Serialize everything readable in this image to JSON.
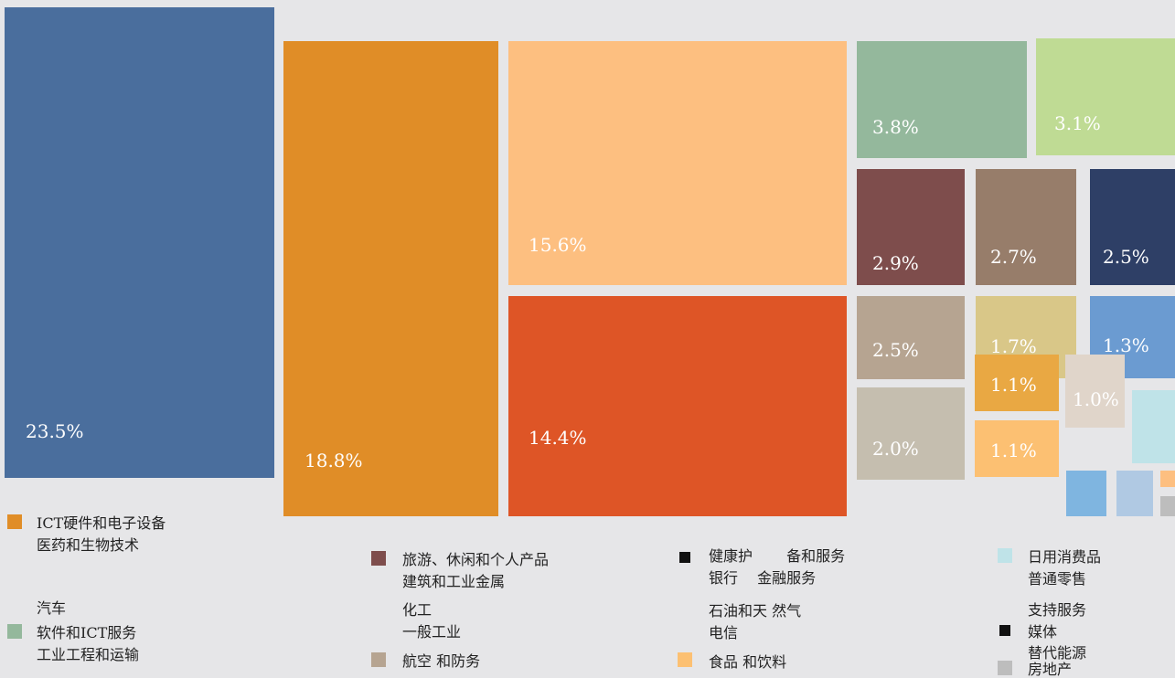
{
  "chart_data": {
    "type": "treemap",
    "tiles": [
      {
        "label": "23.5%",
        "value": 23.5,
        "color": "#4a6e9d"
      },
      {
        "label": "18.8%",
        "value": 18.8,
        "color": "#e08d27"
      },
      {
        "label": "15.6%",
        "value": 15.6,
        "color": "#fdbf80"
      },
      {
        "label": "14.4%",
        "value": 14.4,
        "color": "#de5526"
      },
      {
        "label": "3.8%",
        "value": 3.8,
        "color": "#94b89c"
      },
      {
        "label": "3.1%",
        "value": 3.1,
        "color": "#bfdb94"
      },
      {
        "label": "2.9%",
        "value": 2.9,
        "color": "#7e4d4c"
      },
      {
        "label": "2.7%",
        "value": 2.7,
        "color": "#977d6a"
      },
      {
        "label": "2.5%",
        "value": 2.5,
        "color": "#2e3f66"
      },
      {
        "label": "2.5%",
        "value": 2.5,
        "color": "#b6a491"
      },
      {
        "label": "1.7%",
        "value": 1.7,
        "color": "#d9c788"
      },
      {
        "label": "1.3%",
        "value": 1.3,
        "color": "#6b9bd1"
      },
      {
        "label": "2.0%",
        "value": 2.0,
        "color": "#c5beaf"
      },
      {
        "label": "1.1%",
        "value": 1.1,
        "color": "#e9a843"
      },
      {
        "label": "1.0%",
        "value": 1.0,
        "color": "#e0d5ca"
      },
      {
        "label": "1.1%",
        "value": 1.1,
        "color": "#fcc072"
      },
      {
        "label": "",
        "value": 0.8,
        "color": "#bfe3e8"
      },
      {
        "label": "",
        "value": 0.5,
        "color": "#7fb5e0"
      },
      {
        "label": "",
        "value": 0.5,
        "color": "#b0c9e3"
      },
      {
        "label": "",
        "value": 0.2,
        "color": "#fdbf80"
      },
      {
        "label": "",
        "value": 0.2,
        "color": "#bdbdbd"
      }
    ],
    "legend": [
      {
        "color": "#e08d27",
        "lines": [
          "ICT硬件和电子设备",
          "医药和生物技术"
        ]
      },
      {
        "color": "",
        "lines": [
          "汽车"
        ]
      },
      {
        "color": "#94b89c",
        "lines": [
          "软件和ICT服务",
          "工业工程和运输"
        ]
      },
      {
        "color": "#7e4d4c",
        "lines": [
          "旅游、休闲和个人产品",
          "建筑和工业金属"
        ]
      },
      {
        "color": "",
        "lines": [
          "化工",
          "一般工业"
        ]
      },
      {
        "color": "#b6a491",
        "lines": [
          "航空 和防务"
        ]
      },
      {
        "color": "#111111",
        "lines": [
          "健康护　　 备和服务",
          "银行　 金融服务"
        ]
      },
      {
        "color": "",
        "lines": [
          "石油和天 然气",
          "电信"
        ]
      },
      {
        "color": "#fcc072",
        "lines": [
          "食品 和饮料"
        ]
      },
      {
        "color": "#bfe3e8",
        "lines": [
          "日用消费品",
          "普通零售"
        ]
      },
      {
        "color": "#111111",
        "lines": [
          "支持服务",
          "媒体"
        ]
      },
      {
        "color": "#bdbdbd",
        "lines": [
          "替代能源",
          "房地产"
        ]
      }
    ]
  }
}
